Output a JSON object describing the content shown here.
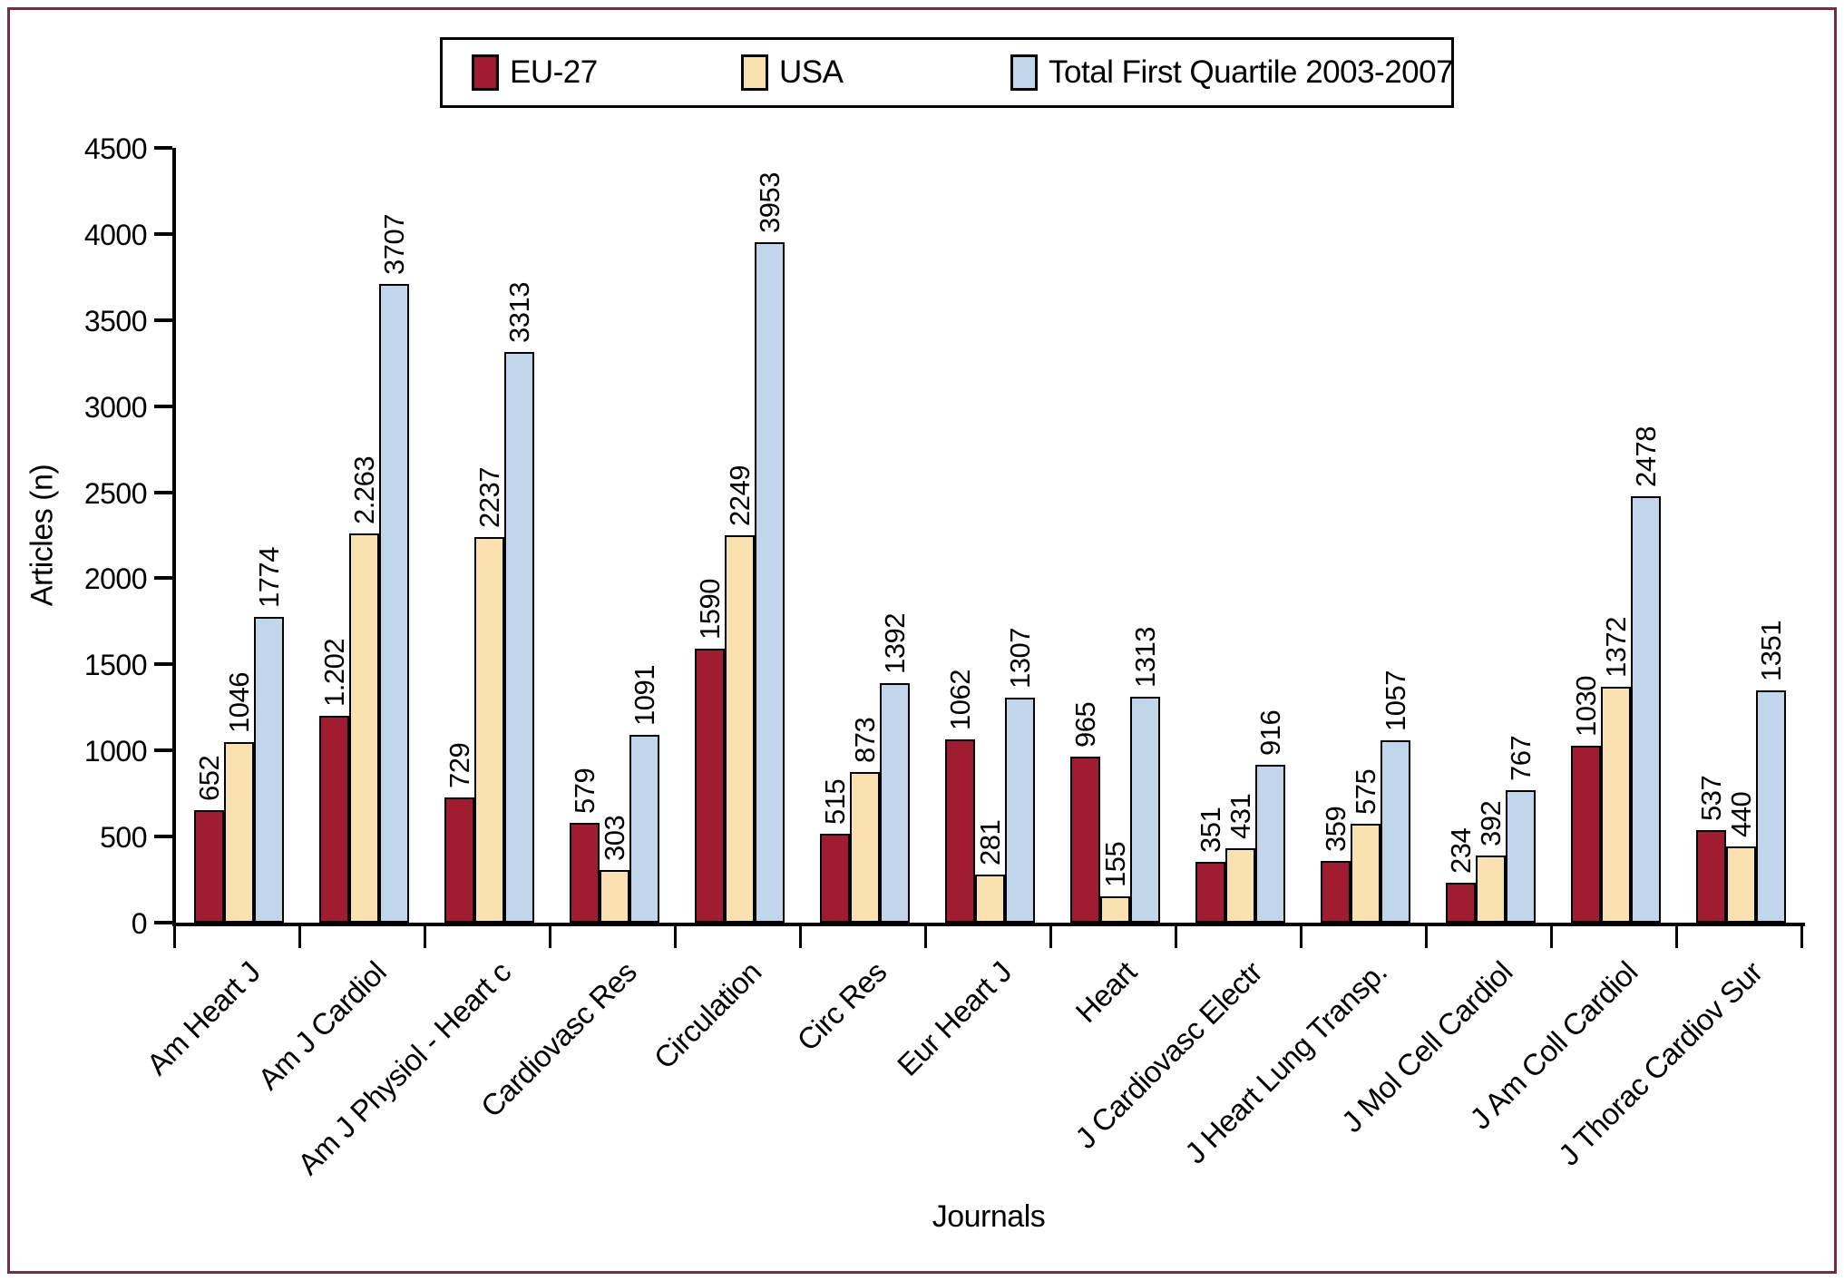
{
  "figure": {
    "border_color": "#6E3045",
    "background_color": "#FFFFFF"
  },
  "legend": {
    "items": [
      {
        "label": "EU-27",
        "color": "#A01C30"
      },
      {
        "label": "USA",
        "color": "#F9E1B0"
      },
      {
        "label": "Total First Quartile 2003-2007",
        "color": "#C2D6EB"
      }
    ]
  },
  "chart_data": {
    "type": "bar",
    "title": "",
    "xlabel": "Journals",
    "ylabel": "Articles (n)",
    "ylim": [
      0,
      4500
    ],
    "ytick_step": 500,
    "grid": false,
    "legend_position": "top",
    "bar_value_labels_rotated": true,
    "categories": [
      "Am Heart J",
      "Am J Cardiol",
      "Am J Physiol - Heart c",
      "Cardiovasc Res",
      "Circulation",
      "Circ Res",
      "Eur Heart J",
      "Heart",
      "J Cardiovasc Electr",
      "J Heart Lung Transp.",
      "J Mol Cell Cardiol",
      "J Am Coll Cardiol",
      "J Thorac Cardiov Sur"
    ],
    "series": [
      {
        "name": "EU-27",
        "color": "#A01C30",
        "values": [
          652,
          1202,
          729,
          579,
          1590,
          515,
          1062,
          965,
          351,
          359,
          234,
          1030,
          537
        ],
        "labels": [
          "652",
          "1.202",
          "729",
          "579",
          "1590",
          "515",
          "1062",
          "965",
          "351",
          "359",
          "234",
          "1030",
          "537"
        ]
      },
      {
        "name": "USA",
        "color": "#F9E1B0",
        "values": [
          1046,
          2263,
          2237,
          303,
          2249,
          873,
          281,
          155,
          431,
          575,
          392,
          1372,
          440
        ],
        "labels": [
          "1046",
          "2.263",
          "2237",
          "303",
          "2249",
          "873",
          "281",
          "155",
          "431",
          "575",
          "392",
          "1372",
          "440"
        ]
      },
      {
        "name": "Total First Quartile 2003-2007",
        "color": "#C2D6EB",
        "values": [
          1774,
          3707,
          3313,
          1091,
          3953,
          1392,
          1307,
          1313,
          916,
          1057,
          767,
          2478,
          1351
        ],
        "labels": [
          "1774",
          "3707",
          "3313",
          "1091",
          "3953",
          "1392",
          "1307",
          "1313",
          "916",
          "1057",
          "767",
          "2478",
          "1351"
        ]
      }
    ]
  }
}
